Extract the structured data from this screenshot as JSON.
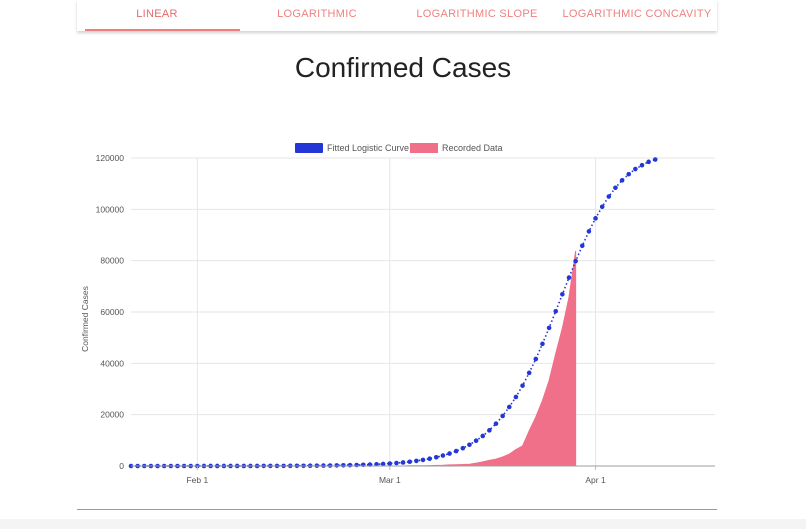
{
  "tabs": [
    {
      "label": "LINEAR",
      "active": true
    },
    {
      "label": "LOGARITHMIC",
      "active": false
    },
    {
      "label": "LOGARITHMIC SLOPE",
      "active": false
    },
    {
      "label": "LOGARITHMIC CONCAVITY",
      "active": false
    }
  ],
  "page": {
    "title": "Confirmed Cases"
  },
  "colors": {
    "accent": "#f08080",
    "fitted": "#2437d6",
    "recorded": "#f07089",
    "grid": "#e6e6e6"
  },
  "chart_data": {
    "type": "line",
    "title": "",
    "xlabel": "",
    "ylabel": "Confirmed Cases",
    "legend_position": "top-center",
    "grid": true,
    "x_axis_type": "date",
    "x_range": [
      "2020-01-22",
      "2020-04-19"
    ],
    "y_range": [
      0,
      120000
    ],
    "y_ticks": [
      0,
      20000,
      40000,
      60000,
      80000,
      100000,
      120000
    ],
    "x_ticks": [
      {
        "date": "2020-02-01",
        "label": "Feb 1"
      },
      {
        "date": "2020-03-01",
        "label": "Mar 1"
      },
      {
        "date": "2020-04-01",
        "label": "Apr 1"
      }
    ],
    "series": [
      {
        "name": "Fitted Logistic Curve",
        "style": "dotted-line",
        "start_date": "2020-01-22",
        "values": [
          1,
          1,
          1,
          1,
          2,
          2,
          2,
          3,
          3,
          4,
          5,
          6,
          7,
          8,
          10,
          12,
          14,
          17,
          21,
          25,
          30,
          36,
          43,
          52,
          62,
          75,
          90,
          108,
          129,
          155,
          186,
          224,
          268,
          322,
          386,
          463,
          556,
          667,
          800,
          959,
          1150,
          1380,
          1650,
          1980,
          2370,
          2840,
          3400,
          4070,
          4860,
          5810,
          6940,
          8280,
          9860,
          11700,
          13900,
          16500,
          19500,
          23000,
          26900,
          31300,
          36300,
          41700,
          47600,
          53800,
          60300,
          66900,
          73400,
          79800,
          85800,
          91400,
          96500,
          101000,
          105000,
          108400,
          111300,
          113700,
          115700,
          117200,
          118500,
          119400
        ]
      },
      {
        "name": "Recorded Data",
        "style": "area",
        "start_date": "2020-01-22",
        "values": [
          0,
          0,
          0,
          0,
          0,
          0,
          0,
          0,
          0,
          0,
          0,
          0,
          0,
          0,
          0,
          0,
          0,
          0,
          0,
          0,
          0,
          0,
          0,
          0,
          0,
          0,
          0,
          0,
          0,
          0,
          0,
          0,
          0,
          0,
          0,
          0,
          0,
          0,
          0,
          0,
          0,
          0,
          80,
          100,
          120,
          160,
          230,
          300,
          430,
          500,
          600,
          700,
          1100,
          1600,
          2200,
          2700,
          3500,
          4600,
          6400,
          7800,
          13700,
          19100,
          25500,
          33300,
          43800,
          53700,
          65800,
          83800
        ]
      }
    ]
  }
}
